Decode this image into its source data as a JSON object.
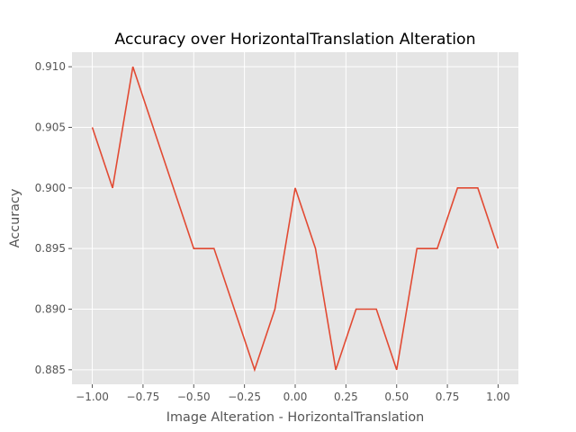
{
  "chart_data": {
    "type": "line",
    "title": "Accuracy over HorizontalTranslation Alteration",
    "xlabel": "Image Alteration - HorizontalTranslation",
    "ylabel": "Accuracy",
    "x": [
      -1.0,
      -0.9,
      -0.8,
      -0.7,
      -0.6,
      -0.5,
      -0.4,
      -0.3,
      -0.2,
      -0.1,
      0.0,
      0.1,
      0.2,
      0.3,
      0.4,
      0.5,
      0.6,
      0.7,
      0.8,
      0.9,
      1.0
    ],
    "series": [
      {
        "values": [
          0.905,
          0.9,
          0.91,
          0.905,
          0.9,
          0.895,
          0.895,
          0.89,
          0.885,
          0.89,
          0.9,
          0.895,
          0.885,
          0.89,
          0.89,
          0.885,
          0.895,
          0.895,
          0.9,
          0.9,
          0.895
        ],
        "color": "#E24A33"
      }
    ],
    "xlim": [
      -1.1,
      1.1
    ],
    "ylim": [
      0.8838,
      0.9112
    ],
    "xticks": [
      -1.0,
      -0.75,
      -0.5,
      -0.25,
      0.0,
      0.25,
      0.5,
      0.75,
      1.0
    ],
    "xtick_labels": [
      "−1.00",
      "−0.75",
      "−0.50",
      "−0.25",
      "0.00",
      "0.25",
      "0.50",
      "0.75",
      "1.00"
    ],
    "yticks": [
      0.885,
      0.89,
      0.895,
      0.9,
      0.905,
      0.91
    ],
    "ytick_labels": [
      "0.885",
      "0.890",
      "0.895",
      "0.900",
      "0.905",
      "0.910"
    ],
    "grid": true,
    "style": "ggplot",
    "colors": {
      "background": "#E5E5E5",
      "grid": "#FFFFFF",
      "tick": "#555555"
    }
  }
}
